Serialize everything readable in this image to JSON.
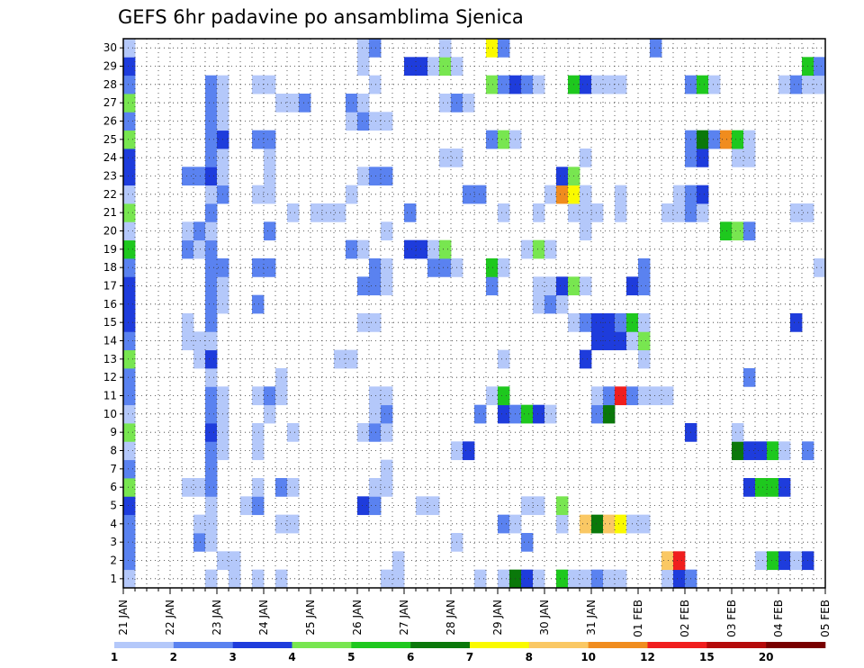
{
  "chart_data": {
    "type": "heatmap",
    "title": "GEFS 6hr padavine po ansamblima Sjenica",
    "xlabel": "",
    "ylabel": "",
    "x_tick_labels": [
      "21 JAN",
      "22 JAN",
      "23 JAN",
      "24 JAN",
      "25 JAN",
      "26 JAN",
      "27 JAN",
      "28 JAN",
      "29 JAN",
      "30 JAN",
      "31 JAN",
      "01 FEB",
      "02 FEB",
      "03 FEB",
      "04 FEB",
      "05 FEB"
    ],
    "y_tick_labels": [
      "1",
      "2",
      "3",
      "4",
      "5",
      "6",
      "7",
      "8",
      "9",
      "10",
      "11",
      "12",
      "13",
      "14",
      "15",
      "16",
      "17",
      "18",
      "19",
      "20",
      "21",
      "22",
      "23",
      "24",
      "25",
      "26",
      "27",
      "28",
      "29",
      "30"
    ],
    "members_range": [
      1,
      30
    ],
    "steps_per_day": 4,
    "grid": true,
    "legend": {
      "placement": "bottom",
      "labels": [
        "1",
        "2",
        "3",
        "4",
        "5",
        "6",
        "7",
        "8",
        "10",
        "12",
        "15",
        "20"
      ],
      "colors": [
        "#b4c8fa",
        "#5a82f0",
        "#1e3cdc",
        "#78e650",
        "#1ec81e",
        "#0a780a",
        "#fafa00",
        "#fac864",
        "#f08c1e",
        "#f01e1e",
        "#b40a0a",
        "#780000"
      ]
    },
    "cells_note": "[member, time_step, bin_index]; time_step 0 = 21 JAN 00Z, 6 h steps",
    "cells": [
      [
        1,
        0,
        0
      ],
      [
        1,
        7,
        0
      ],
      [
        1,
        9,
        0
      ],
      [
        1,
        11,
        0
      ],
      [
        1,
        13,
        0
      ],
      [
        1,
        22,
        0
      ],
      [
        1,
        23,
        0
      ],
      [
        1,
        30,
        0
      ],
      [
        1,
        32,
        0
      ],
      [
        1,
        33,
        5
      ],
      [
        1,
        34,
        2
      ],
      [
        1,
        35,
        0
      ],
      [
        1,
        37,
        4
      ],
      [
        1,
        38,
        0
      ],
      [
        1,
        39,
        0
      ],
      [
        1,
        40,
        1
      ],
      [
        1,
        41,
        0
      ],
      [
        1,
        42,
        0
      ],
      [
        1,
        46,
        0
      ],
      [
        1,
        47,
        2
      ],
      [
        1,
        48,
        1
      ],
      [
        2,
        0,
        1
      ],
      [
        2,
        8,
        0
      ],
      [
        2,
        9,
        0
      ],
      [
        2,
        23,
        0
      ],
      [
        2,
        46,
        7
      ],
      [
        2,
        47,
        9
      ],
      [
        2,
        54,
        0
      ],
      [
        2,
        55,
        4
      ],
      [
        2,
        56,
        2
      ],
      [
        2,
        57,
        0
      ],
      [
        2,
        58,
        2
      ],
      [
        3,
        0,
        1
      ],
      [
        3,
        6,
        1
      ],
      [
        3,
        7,
        0
      ],
      [
        3,
        28,
        0
      ],
      [
        3,
        34,
        1
      ],
      [
        4,
        0,
        1
      ],
      [
        4,
        6,
        0
      ],
      [
        4,
        7,
        0
      ],
      [
        4,
        13,
        0
      ],
      [
        4,
        14,
        0
      ],
      [
        4,
        32,
        1
      ],
      [
        4,
        33,
        0
      ],
      [
        4,
        37,
        0
      ],
      [
        4,
        39,
        7
      ],
      [
        4,
        40,
        5
      ],
      [
        4,
        41,
        7
      ],
      [
        4,
        42,
        6
      ],
      [
        4,
        43,
        0
      ],
      [
        4,
        44,
        0
      ],
      [
        5,
        0,
        2
      ],
      [
        5,
        7,
        0
      ],
      [
        5,
        10,
        0
      ],
      [
        5,
        11,
        1
      ],
      [
        5,
        20,
        2
      ],
      [
        5,
        21,
        1
      ],
      [
        5,
        25,
        0
      ],
      [
        5,
        26,
        0
      ],
      [
        5,
        34,
        0
      ],
      [
        5,
        35,
        0
      ],
      [
        5,
        37,
        3
      ],
      [
        6,
        0,
        3
      ],
      [
        6,
        5,
        0
      ],
      [
        6,
        6,
        0
      ],
      [
        6,
        7,
        1
      ],
      [
        6,
        11,
        0
      ],
      [
        6,
        13,
        1
      ],
      [
        6,
        14,
        0
      ],
      [
        6,
        21,
        0
      ],
      [
        6,
        22,
        0
      ],
      [
        6,
        53,
        2
      ],
      [
        6,
        54,
        4
      ],
      [
        6,
        55,
        4
      ],
      [
        6,
        56,
        2
      ],
      [
        7,
        0,
        1
      ],
      [
        7,
        7,
        1
      ],
      [
        7,
        22,
        0
      ],
      [
        8,
        0,
        0
      ],
      [
        8,
        7,
        1
      ],
      [
        8,
        8,
        0
      ],
      [
        8,
        11,
        0
      ],
      [
        8,
        28,
        0
      ],
      [
        8,
        29,
        2
      ],
      [
        8,
        52,
        5
      ],
      [
        8,
        53,
        2
      ],
      [
        8,
        54,
        2
      ],
      [
        8,
        55,
        4
      ],
      [
        8,
        56,
        0
      ],
      [
        8,
        58,
        1
      ],
      [
        9,
        0,
        3
      ],
      [
        9,
        7,
        2
      ],
      [
        9,
        8,
        0
      ],
      [
        9,
        11,
        0
      ],
      [
        9,
        14,
        0
      ],
      [
        9,
        20,
        0
      ],
      [
        9,
        21,
        1
      ],
      [
        9,
        22,
        0
      ],
      [
        9,
        52,
        0
      ],
      [
        9,
        48,
        2
      ],
      [
        10,
        0,
        0
      ],
      [
        10,
        7,
        1
      ],
      [
        10,
        8,
        0
      ],
      [
        10,
        12,
        0
      ],
      [
        10,
        21,
        0
      ],
      [
        10,
        22,
        1
      ],
      [
        10,
        30,
        1
      ],
      [
        10,
        32,
        2
      ],
      [
        10,
        33,
        1
      ],
      [
        10,
        34,
        4
      ],
      [
        10,
        35,
        2
      ],
      [
        10,
        36,
        0
      ],
      [
        10,
        40,
        1
      ],
      [
        10,
        41,
        5
      ],
      [
        11,
        0,
        1
      ],
      [
        11,
        7,
        1
      ],
      [
        11,
        8,
        0
      ],
      [
        11,
        11,
        0
      ],
      [
        11,
        12,
        1
      ],
      [
        11,
        13,
        0
      ],
      [
        11,
        21,
        0
      ],
      [
        11,
        22,
        0
      ],
      [
        11,
        31,
        0
      ],
      [
        11,
        32,
        4
      ],
      [
        11,
        40,
        0
      ],
      [
        11,
        41,
        1
      ],
      [
        11,
        42,
        9
      ],
      [
        11,
        43,
        1
      ],
      [
        11,
        44,
        0
      ],
      [
        11,
        45,
        0
      ],
      [
        11,
        46,
        0
      ],
      [
        12,
        0,
        1
      ],
      [
        12,
        7,
        0
      ],
      [
        12,
        13,
        0
      ],
      [
        12,
        53,
        1
      ],
      [
        13,
        0,
        3
      ],
      [
        13,
        6,
        0
      ],
      [
        13,
        7,
        2
      ],
      [
        13,
        18,
        0
      ],
      [
        13,
        19,
        0
      ],
      [
        13,
        32,
        0
      ],
      [
        13,
        39,
        2
      ],
      [
        13,
        44,
        0
      ],
      [
        14,
        0,
        1
      ],
      [
        14,
        5,
        0
      ],
      [
        14,
        6,
        0
      ],
      [
        14,
        7,
        0
      ],
      [
        14,
        40,
        2
      ],
      [
        14,
        41,
        2
      ],
      [
        14,
        42,
        2
      ],
      [
        14,
        43,
        0
      ],
      [
        14,
        44,
        3
      ],
      [
        15,
        0,
        2
      ],
      [
        15,
        5,
        0
      ],
      [
        15,
        7,
        1
      ],
      [
        15,
        20,
        0
      ],
      [
        15,
        21,
        0
      ],
      [
        15,
        38,
        0
      ],
      [
        15,
        39,
        1
      ],
      [
        15,
        40,
        2
      ],
      [
        15,
        41,
        2
      ],
      [
        15,
        42,
        1
      ],
      [
        15,
        43,
        4
      ],
      [
        15,
        44,
        0
      ],
      [
        15,
        57,
        2
      ],
      [
        16,
        0,
        2
      ],
      [
        16,
        7,
        1
      ],
      [
        16,
        8,
        0
      ],
      [
        16,
        11,
        1
      ],
      [
        16,
        35,
        0
      ],
      [
        16,
        36,
        1
      ],
      [
        16,
        37,
        0
      ],
      [
        17,
        0,
        2
      ],
      [
        17,
        7,
        1
      ],
      [
        17,
        8,
        0
      ],
      [
        17,
        20,
        1
      ],
      [
        17,
        21,
        1
      ],
      [
        17,
        22,
        0
      ],
      [
        17,
        31,
        1
      ],
      [
        17,
        35,
        0
      ],
      [
        17,
        36,
        0
      ],
      [
        17,
        37,
        2
      ],
      [
        17,
        38,
        3
      ],
      [
        17,
        39,
        0
      ],
      [
        17,
        43,
        2
      ],
      [
        17,
        44,
        1
      ],
      [
        18,
        0,
        1
      ],
      [
        18,
        7,
        1
      ],
      [
        18,
        8,
        1
      ],
      [
        18,
        11,
        1
      ],
      [
        18,
        12,
        1
      ],
      [
        18,
        21,
        1
      ],
      [
        18,
        22,
        0
      ],
      [
        18,
        26,
        1
      ],
      [
        18,
        27,
        1
      ],
      [
        18,
        28,
        0
      ],
      [
        18,
        31,
        4
      ],
      [
        18,
        32,
        0
      ],
      [
        18,
        44,
        1
      ],
      [
        18,
        59,
        0
      ],
      [
        19,
        0,
        4
      ],
      [
        19,
        5,
        1
      ],
      [
        19,
        6,
        0
      ],
      [
        19,
        7,
        1
      ],
      [
        19,
        19,
        1
      ],
      [
        19,
        20,
        0
      ],
      [
        19,
        24,
        2
      ],
      [
        19,
        25,
        2
      ],
      [
        19,
        26,
        0
      ],
      [
        19,
        27,
        3
      ],
      [
        19,
        34,
        0
      ],
      [
        19,
        35,
        3
      ],
      [
        19,
        36,
        0
      ],
      [
        20,
        0,
        0
      ],
      [
        20,
        5,
        0
      ],
      [
        20,
        6,
        1
      ],
      [
        20,
        7,
        0
      ],
      [
        20,
        12,
        1
      ],
      [
        20,
        22,
        0
      ],
      [
        20,
        39,
        0
      ],
      [
        20,
        51,
        4
      ],
      [
        20,
        52,
        3
      ],
      [
        20,
        53,
        1
      ],
      [
        21,
        0,
        3
      ],
      [
        21,
        7,
        1
      ],
      [
        21,
        14,
        0
      ],
      [
        21,
        16,
        0
      ],
      [
        21,
        17,
        0
      ],
      [
        21,
        18,
        0
      ],
      [
        21,
        24,
        1
      ],
      [
        21,
        32,
        0
      ],
      [
        21,
        35,
        0
      ],
      [
        21,
        38,
        0
      ],
      [
        21,
        39,
        0
      ],
      [
        21,
        40,
        0
      ],
      [
        21,
        42,
        0
      ],
      [
        21,
        46,
        0
      ],
      [
        21,
        47,
        0
      ],
      [
        21,
        48,
        1
      ],
      [
        21,
        49,
        0
      ],
      [
        21,
        57,
        0
      ],
      [
        21,
        58,
        0
      ],
      [
        22,
        0,
        0
      ],
      [
        22,
        7,
        0
      ],
      [
        22,
        8,
        1
      ],
      [
        22,
        11,
        0
      ],
      [
        22,
        12,
        0
      ],
      [
        22,
        19,
        0
      ],
      [
        22,
        29,
        1
      ],
      [
        22,
        30,
        1
      ],
      [
        22,
        36,
        0
      ],
      [
        22,
        37,
        8
      ],
      [
        22,
        38,
        6
      ],
      [
        22,
        39,
        0
      ],
      [
        22,
        42,
        0
      ],
      [
        22,
        47,
        0
      ],
      [
        22,
        48,
        1
      ],
      [
        22,
        49,
        2
      ],
      [
        23,
        0,
        2
      ],
      [
        23,
        5,
        1
      ],
      [
        23,
        6,
        1
      ],
      [
        23,
        7,
        2
      ],
      [
        23,
        8,
        0
      ],
      [
        23,
        12,
        0
      ],
      [
        23,
        20,
        0
      ],
      [
        23,
        21,
        1
      ],
      [
        23,
        22,
        1
      ],
      [
        23,
        37,
        2
      ],
      [
        23,
        38,
        3
      ],
      [
        24,
        0,
        2
      ],
      [
        24,
        7,
        1
      ],
      [
        24,
        8,
        0
      ],
      [
        24,
        12,
        0
      ],
      [
        24,
        27,
        0
      ],
      [
        24,
        28,
        0
      ],
      [
        24,
        39,
        0
      ],
      [
        24,
        48,
        1
      ],
      [
        24,
        49,
        2
      ],
      [
        24,
        52,
        0
      ],
      [
        24,
        53,
        0
      ],
      [
        25,
        0,
        3
      ],
      [
        25,
        7,
        1
      ],
      [
        25,
        8,
        2
      ],
      [
        25,
        11,
        1
      ],
      [
        25,
        12,
        1
      ],
      [
        25,
        31,
        1
      ],
      [
        25,
        32,
        3
      ],
      [
        25,
        33,
        0
      ],
      [
        25,
        48,
        1
      ],
      [
        25,
        49,
        5
      ],
      [
        25,
        50,
        1
      ],
      [
        25,
        51,
        8
      ],
      [
        25,
        52,
        4
      ],
      [
        25,
        53,
        0
      ],
      [
        26,
        0,
        1
      ],
      [
        26,
        7,
        1
      ],
      [
        26,
        8,
        0
      ],
      [
        26,
        19,
        0
      ],
      [
        26,
        20,
        1
      ],
      [
        26,
        21,
        0
      ],
      [
        26,
        22,
        0
      ],
      [
        27,
        0,
        3
      ],
      [
        27,
        7,
        1
      ],
      [
        27,
        8,
        0
      ],
      [
        27,
        13,
        0
      ],
      [
        27,
        14,
        0
      ],
      [
        27,
        15,
        1
      ],
      [
        27,
        19,
        1
      ],
      [
        27,
        20,
        0
      ],
      [
        27,
        27,
        0
      ],
      [
        27,
        28,
        1
      ],
      [
        27,
        29,
        0
      ],
      [
        28,
        0,
        1
      ],
      [
        28,
        7,
        1
      ],
      [
        28,
        8,
        0
      ],
      [
        28,
        11,
        0
      ],
      [
        28,
        12,
        0
      ],
      [
        28,
        21,
        0
      ],
      [
        28,
        31,
        3
      ],
      [
        28,
        32,
        1
      ],
      [
        28,
        33,
        2
      ],
      [
        28,
        34,
        1
      ],
      [
        28,
        35,
        0
      ],
      [
        28,
        38,
        4
      ],
      [
        28,
        39,
        2
      ],
      [
        28,
        40,
        0
      ],
      [
        28,
        41,
        0
      ],
      [
        28,
        42,
        0
      ],
      [
        28,
        48,
        1
      ],
      [
        28,
        49,
        4
      ],
      [
        28,
        50,
        0
      ],
      [
        28,
        56,
        0
      ],
      [
        28,
        57,
        1
      ],
      [
        28,
        58,
        0
      ],
      [
        28,
        59,
        0
      ],
      [
        29,
        0,
        2
      ],
      [
        29,
        20,
        0
      ],
      [
        29,
        24,
        2
      ],
      [
        29,
        25,
        2
      ],
      [
        29,
        26,
        0
      ],
      [
        29,
        27,
        3
      ],
      [
        29,
        28,
        0
      ],
      [
        29,
        58,
        4
      ],
      [
        29,
        59,
        1
      ],
      [
        30,
        0,
        0
      ],
      [
        30,
        20,
        0
      ],
      [
        30,
        21,
        1
      ],
      [
        30,
        27,
        0
      ],
      [
        30,
        31,
        6
      ],
      [
        30,
        32,
        1
      ],
      [
        30,
        45,
        1
      ]
    ]
  }
}
